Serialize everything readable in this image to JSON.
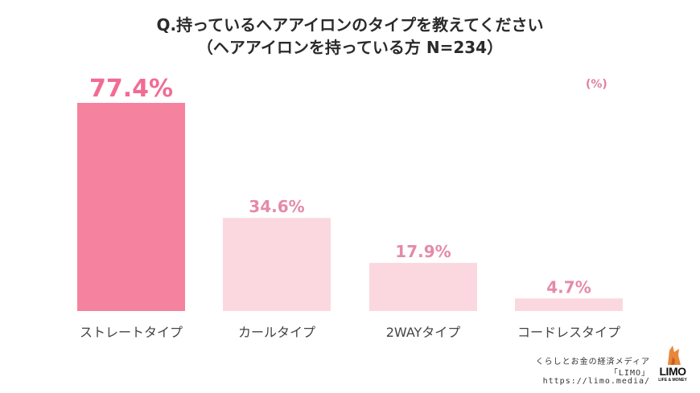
{
  "title_line1": "Q.持っているヘアアイロンのタイプを教えてください",
  "title_line2": "（ヘアアイロンを持っている方 N=234）",
  "unit": "(%)",
  "colors": {
    "highlight_bar": "#f5829f",
    "bar": "#fbd8df",
    "highlight_label": "#f16c94",
    "label": "#e58aa8",
    "category_text": "#444444"
  },
  "chart_data": {
    "type": "bar",
    "categories": [
      "ストレートタイプ",
      "カールタイプ",
      "2WAYタイプ",
      "コードレスタイプ"
    ],
    "values": [
      77.4,
      34.6,
      17.9,
      4.7
    ],
    "value_labels": [
      "77.4%",
      "34.6%",
      "17.9%",
      "4.7%"
    ],
    "ylim": [
      0,
      77.4
    ],
    "grid": false
  },
  "credit": {
    "line1": "くらしとお金の経済メディア",
    "line2": "「LIMO」",
    "line3": "https://limo.media/"
  },
  "logo": {
    "name": "LIMO",
    "tagline": "LIFE & MONEY",
    "icon": "fox-icon"
  }
}
